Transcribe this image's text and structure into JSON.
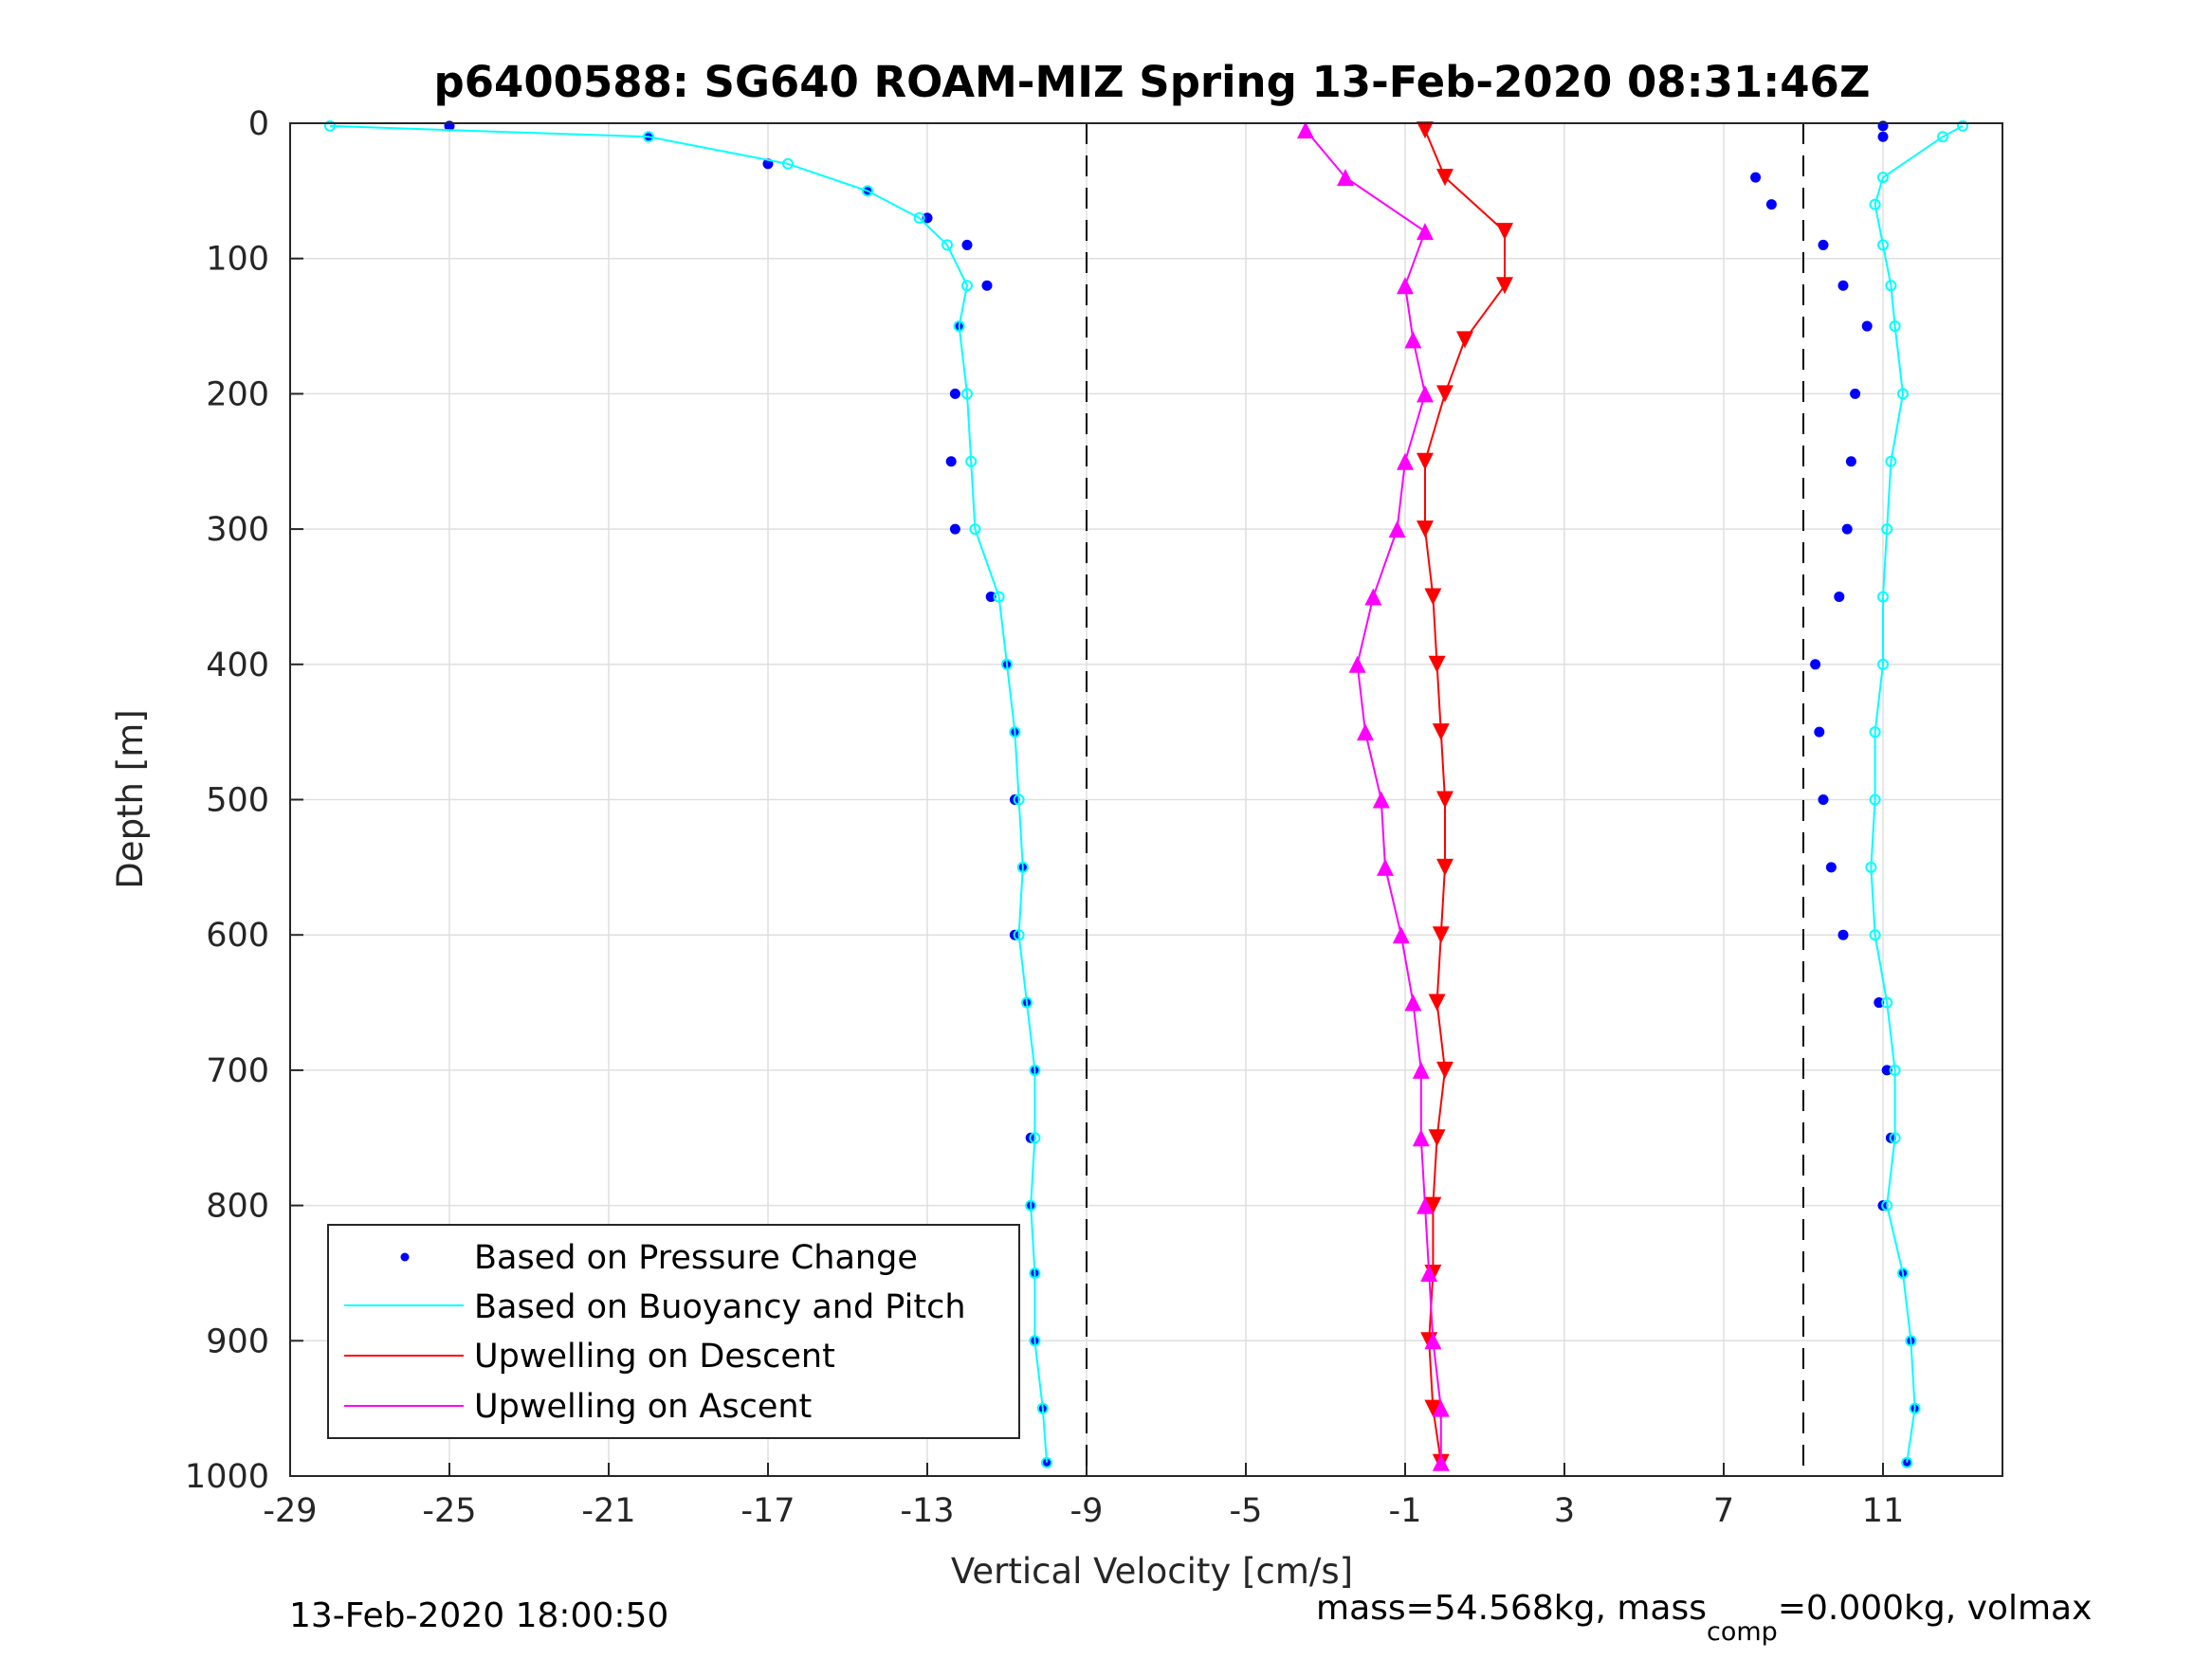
{
  "chart_data": {
    "type": "scatter",
    "title": "p6400588: SG640 ROAM-MIZ Spring 13-Feb-2020 08:31:46Z",
    "xlabel": "Vertical Velocity [cm/s]",
    "ylabel": "Depth [m]",
    "xlim": [
      -29,
      14
    ],
    "ylim": [
      0,
      1000
    ],
    "y_reversed": true,
    "x_ticks": [
      -29,
      -25,
      -21,
      -17,
      -13,
      -9,
      -5,
      -1,
      3,
      7,
      11
    ],
    "y_ticks": [
      0,
      100,
      200,
      300,
      400,
      500,
      600,
      700,
      800,
      900,
      1000
    ],
    "x_tick_labels": [
      "-29",
      "-25",
      "-21",
      "-17",
      "-13",
      "-9",
      "-5",
      "-1",
      "3",
      "7",
      "11"
    ],
    "y_tick_labels": [
      "0",
      "100",
      "200",
      "300",
      "400",
      "500",
      "600",
      "700",
      "800",
      "900",
      "1000"
    ],
    "grid": true,
    "legend_position": "bottom-left",
    "reference_lines": [
      -9,
      9
    ],
    "colors": {
      "pressure": "#0000ff",
      "buoyancy": "#00ffff",
      "descent": "#ff0000",
      "ascent": "#ff00ff"
    },
    "series": [
      {
        "name": "Based on Pressure Change",
        "profile": "descent",
        "depth": [
          2,
          10,
          30,
          50,
          70,
          90,
          120,
          150,
          200,
          250,
          300,
          350,
          400,
          450,
          500,
          550,
          600,
          650,
          700,
          750,
          800,
          850,
          900,
          950,
          990
        ],
        "velocity": [
          -25,
          -20,
          -17,
          -14.5,
          -13,
          -12,
          -11.5,
          -12.2,
          -12.3,
          -12.4,
          -12.3,
          -11.4,
          -11,
          -10.8,
          -10.8,
          -10.6,
          -10.8,
          -10.5,
          -10.3,
          -10.4,
          -10.4,
          -10.3,
          -10.3,
          -10.1,
          -10
        ]
      },
      {
        "name": "Based on Buoyancy and Pitch",
        "profile": "descent",
        "depth": [
          2,
          10,
          30,
          50,
          70,
          90,
          120,
          150,
          200,
          250,
          300,
          350,
          400,
          450,
          500,
          550,
          600,
          650,
          700,
          750,
          800,
          850,
          900,
          950,
          990
        ],
        "velocity": [
          -28,
          -20,
          -16.5,
          -14.5,
          -13.2,
          -12.5,
          -12,
          -12.2,
          -12,
          -11.9,
          -11.8,
          -11.2,
          -11,
          -10.8,
          -10.7,
          -10.6,
          -10.7,
          -10.5,
          -10.3,
          -10.3,
          -10.4,
          -10.3,
          -10.3,
          -10.1,
          -10
        ]
      },
      {
        "name": "Based on Pressure Change",
        "profile": "ascent",
        "depth": [
          2,
          10,
          40,
          60,
          90,
          120,
          150,
          200,
          250,
          300,
          350,
          400,
          450,
          500,
          550,
          600,
          650,
          700,
          750,
          800,
          850,
          900,
          950,
          990
        ],
        "velocity": [
          11,
          11,
          7.8,
          8.2,
          9.5,
          10,
          10.6,
          10.3,
          10.2,
          10.1,
          9.9,
          9.3,
          9.4,
          9.5,
          9.7,
          10,
          10.9,
          11.1,
          11.2,
          11,
          11.5,
          11.7,
          11.8,
          11.6
        ]
      },
      {
        "name": "Based on Buoyancy and Pitch",
        "profile": "ascent",
        "depth": [
          2,
          10,
          40,
          60,
          90,
          120,
          150,
          200,
          250,
          300,
          350,
          400,
          450,
          500,
          550,
          600,
          650,
          700,
          750,
          800,
          850,
          900,
          950,
          990
        ],
        "velocity": [
          13,
          12.5,
          11,
          10.8,
          11,
          11.2,
          11.3,
          11.5,
          11.2,
          11.1,
          11,
          11,
          10.8,
          10.8,
          10.7,
          10.8,
          11.1,
          11.3,
          11.3,
          11.1,
          11.5,
          11.7,
          11.8,
          11.6
        ]
      },
      {
        "name": "Upwelling on Descent",
        "depth": [
          5,
          40,
          80,
          120,
          160,
          200,
          250,
          300,
          350,
          400,
          450,
          500,
          550,
          600,
          650,
          700,
          750,
          800,
          850,
          900,
          950,
          990
        ],
        "velocity": [
          -0.5,
          0,
          1.5,
          1.5,
          0.5,
          0,
          -0.5,
          -0.5,
          -0.3,
          -0.2,
          -0.1,
          0,
          0,
          -0.1,
          -0.2,
          0,
          -0.2,
          -0.3,
          -0.3,
          -0.4,
          -0.3,
          -0.1
        ]
      },
      {
        "name": "Upwelling on Ascent",
        "depth": [
          5,
          40,
          80,
          120,
          160,
          200,
          250,
          300,
          350,
          400,
          450,
          500,
          550,
          600,
          650,
          700,
          750,
          800,
          850,
          900,
          950,
          990
        ],
        "velocity": [
          -3.5,
          -2.5,
          -0.5,
          -1,
          -0.8,
          -0.5,
          -1,
          -1.2,
          -1.8,
          -2.2,
          -2,
          -1.6,
          -1.5,
          -1.1,
          -0.8,
          -0.6,
          -0.6,
          -0.5,
          -0.4,
          -0.3,
          -0.1,
          -0.1
        ]
      }
    ],
    "legend_entries": [
      "Based on Pressure Change",
      "Based on Buoyancy and Pitch",
      "Upwelling on Descent",
      "Upwelling on Ascent"
    ],
    "footer_left": "13-Feb-2020 18:00:50",
    "footer_right_prefix": "mass=54.568kg, mass",
    "footer_right_sub": "comp",
    "footer_right_suffix": "=0.000kg, volmax"
  }
}
